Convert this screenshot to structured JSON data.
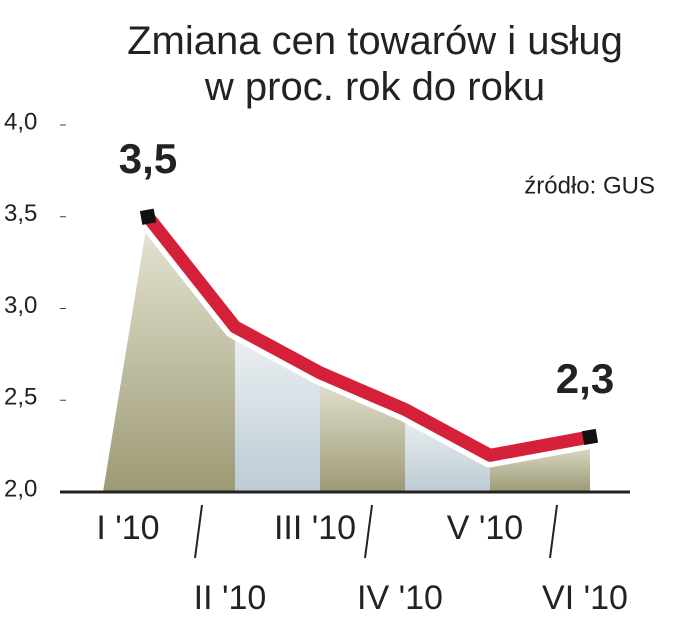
{
  "chart_data": {
    "type": "line",
    "title": "Zmiana cen towarów i usług w proc. rok do roku",
    "source": "źródło: GUS",
    "categories": [
      "I '10",
      "II '10",
      "III '10",
      "IV '10",
      "V '10",
      "VI '10"
    ],
    "values": [
      3.5,
      2.9,
      2.65,
      2.45,
      2.2,
      2.3
    ],
    "value_labels": [
      "3,5",
      null,
      null,
      null,
      null,
      "2,3"
    ],
    "color": "#d42139",
    "ylim": [
      2,
      4
    ],
    "yticks": [
      {
        "value": 2,
        "label": "2,0"
      },
      {
        "value": 2.5,
        "label": "2,5"
      },
      {
        "value": 3,
        "label": "3,0"
      },
      {
        "value": 3.5,
        "label": "3,5"
      },
      {
        "value": 4,
        "label": "4,0"
      }
    ]
  }
}
